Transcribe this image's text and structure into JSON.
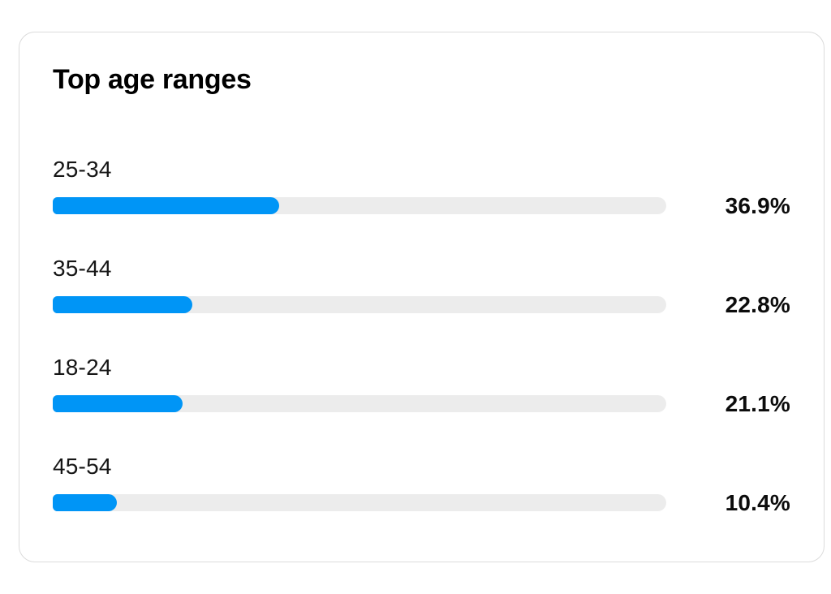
{
  "card": {
    "title": "Top age ranges",
    "rows": [
      {
        "label": "25-34",
        "percent": "36.9%",
        "value": 36.9
      },
      {
        "label": "35-44",
        "percent": "22.8%",
        "value": 22.8
      },
      {
        "label": "18-24",
        "percent": "21.1%",
        "value": 21.1
      },
      {
        "label": "45-54",
        "percent": "10.4%",
        "value": 10.4
      }
    ],
    "colors": {
      "bar_fill": "#0095f6",
      "bar_track": "#ececec",
      "card_border": "#dbdbdb",
      "title_text": "#000000",
      "label_text": "#161616",
      "percent_text": "#0c0c0c",
      "background": "#ffffff"
    }
  },
  "chart_data": {
    "type": "bar",
    "orientation": "horizontal",
    "title": "Top age ranges",
    "categories": [
      "25-34",
      "35-44",
      "18-24",
      "45-54"
    ],
    "values": [
      36.9,
      22.8,
      21.1,
      10.4
    ],
    "value_labels": [
      "36.9%",
      "22.8%",
      "21.1%",
      "10.4%"
    ],
    "unit": "%",
    "xlim": [
      0,
      100
    ],
    "grid": false,
    "legend": false,
    "bar_color": "#0095f6",
    "track_color": "#ececec"
  }
}
